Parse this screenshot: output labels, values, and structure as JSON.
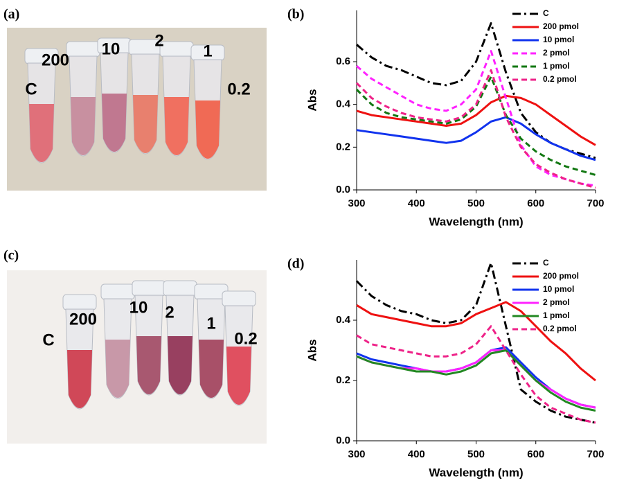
{
  "photos": [
    {
      "panel": "(a)",
      "labels": [
        "C",
        "200",
        "10",
        "2",
        "1",
        "0.2"
      ]
    },
    {
      "panel": "(c)",
      "labels": [
        "C",
        "200",
        "10",
        "2",
        "1",
        "0.2"
      ]
    }
  ],
  "chart_data": [
    {
      "type": "line",
      "panel": "(b)",
      "xlabel": "Wavelength (nm)",
      "ylabel": "Abs",
      "x": [
        300,
        325,
        350,
        375,
        400,
        425,
        450,
        475,
        500,
        525,
        550,
        575,
        600,
        625,
        650,
        675,
        700
      ],
      "xlim": [
        300,
        700
      ],
      "xticks": [
        300,
        400,
        500,
        600,
        700
      ],
      "ylim": [
        0,
        0.84
      ],
      "yticks": [
        {
          "value": 0,
          "label": "0.0"
        },
        0.2,
        0.4,
        0.6
      ],
      "series": [
        {
          "name": "C",
          "color": "#000000",
          "dash": "dashdot",
          "values": [
            0.68,
            0.62,
            0.58,
            0.56,
            0.53,
            0.5,
            0.49,
            0.51,
            0.6,
            0.78,
            0.55,
            0.36,
            0.27,
            0.22,
            0.19,
            0.17,
            0.15
          ]
        },
        {
          "name": "200 pmol",
          "color": "#ee1111",
          "dash": "solid",
          "values": [
            0.37,
            0.35,
            0.34,
            0.33,
            0.32,
            0.31,
            0.3,
            0.31,
            0.35,
            0.41,
            0.44,
            0.43,
            0.4,
            0.35,
            0.3,
            0.25,
            0.21
          ]
        },
        {
          "name": "10 pmol",
          "color": "#1133ee",
          "dash": "solid",
          "values": [
            0.28,
            0.27,
            0.26,
            0.25,
            0.24,
            0.23,
            0.22,
            0.23,
            0.27,
            0.32,
            0.34,
            0.31,
            0.26,
            0.22,
            0.19,
            0.16,
            0.14
          ]
        },
        {
          "name": "2 pmol",
          "color": "#ff22ff",
          "dash": "dashed",
          "values": [
            0.58,
            0.52,
            0.48,
            0.44,
            0.4,
            0.38,
            0.37,
            0.4,
            0.47,
            0.65,
            0.43,
            0.21,
            0.11,
            0.07,
            0.05,
            0.03,
            0.02
          ]
        },
        {
          "name": "1 pmol",
          "color": "#117711",
          "dash": "dashed",
          "values": [
            0.47,
            0.4,
            0.36,
            0.34,
            0.33,
            0.32,
            0.31,
            0.33,
            0.39,
            0.53,
            0.35,
            0.24,
            0.18,
            0.14,
            0.11,
            0.09,
            0.07
          ]
        },
        {
          "name": "0.2 pmol",
          "color": "#ee2288",
          "dash": "dashed",
          "values": [
            0.5,
            0.43,
            0.39,
            0.36,
            0.34,
            0.33,
            0.32,
            0.34,
            0.4,
            0.56,
            0.34,
            0.2,
            0.12,
            0.08,
            0.05,
            0.03,
            0.01
          ]
        }
      ]
    },
    {
      "type": "line",
      "panel": "(d)",
      "xlabel": "Wavelength (nm)",
      "ylabel": "Abs",
      "x": [
        300,
        325,
        350,
        375,
        400,
        425,
        450,
        475,
        500,
        525,
        550,
        575,
        600,
        625,
        650,
        675,
        700
      ],
      "xlim": [
        300,
        700
      ],
      "xticks": [
        300,
        400,
        500,
        600,
        700
      ],
      "ylim": [
        0,
        0.6
      ],
      "yticks": [
        {
          "value": 0,
          "label": "0.0"
        },
        0.2,
        0.4
      ],
      "series": [
        {
          "name": "C",
          "color": "#000000",
          "dash": "dashdot",
          "values": [
            0.53,
            0.48,
            0.45,
            0.43,
            0.42,
            0.4,
            0.39,
            0.4,
            0.45,
            0.59,
            0.38,
            0.17,
            0.13,
            0.1,
            0.08,
            0.07,
            0.06
          ]
        },
        {
          "name": "200 pmol",
          "color": "#ee1111",
          "dash": "solid",
          "values": [
            0.45,
            0.42,
            0.41,
            0.4,
            0.39,
            0.38,
            0.38,
            0.39,
            0.42,
            0.44,
            0.46,
            0.43,
            0.38,
            0.33,
            0.29,
            0.24,
            0.2
          ]
        },
        {
          "name": "10 pmol",
          "color": "#1133ee",
          "dash": "solid",
          "values": [
            0.29,
            0.27,
            0.26,
            0.25,
            0.24,
            0.23,
            0.23,
            0.24,
            0.26,
            0.3,
            0.31,
            0.26,
            0.21,
            0.17,
            0.14,
            0.12,
            0.11
          ]
        },
        {
          "name": "2 pmol",
          "color": "#ff22ff",
          "dash": "solid",
          "values": [
            0.28,
            0.26,
            0.25,
            0.24,
            0.24,
            0.23,
            0.23,
            0.24,
            0.26,
            0.3,
            0.3,
            0.25,
            0.2,
            0.17,
            0.14,
            0.12,
            0.11
          ]
        },
        {
          "name": "1 pmol",
          "color": "#228822",
          "dash": "solid",
          "values": [
            0.28,
            0.26,
            0.25,
            0.24,
            0.23,
            0.23,
            0.22,
            0.23,
            0.25,
            0.29,
            0.3,
            0.25,
            0.2,
            0.16,
            0.13,
            0.11,
            0.1
          ]
        },
        {
          "name": "0.2 pmol",
          "color": "#ee2288",
          "dash": "dashed",
          "values": [
            0.35,
            0.32,
            0.31,
            0.3,
            0.29,
            0.28,
            0.28,
            0.29,
            0.32,
            0.38,
            0.3,
            0.22,
            0.15,
            0.11,
            0.09,
            0.07,
            0.06
          ]
        }
      ]
    }
  ]
}
